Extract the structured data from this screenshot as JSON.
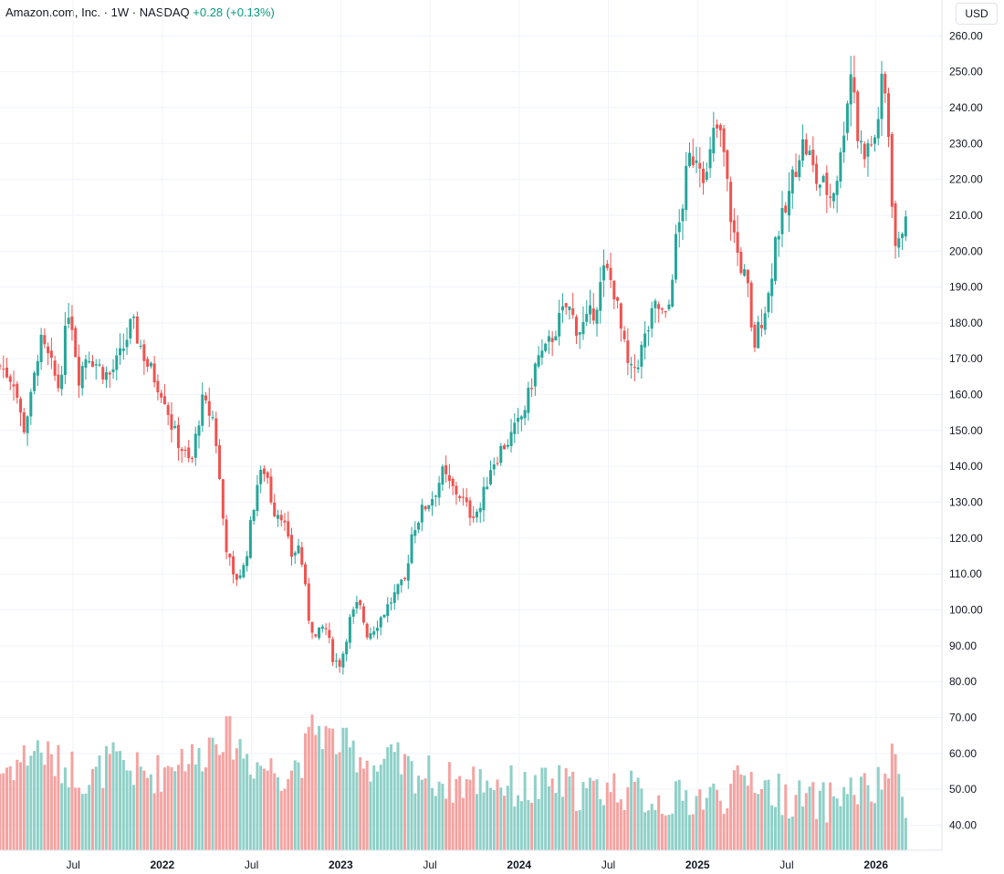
{
  "legend": {
    "symbol": "Amazon.com, Inc.",
    "interval": "1W",
    "exchange": "NASDAQ",
    "change": "+0.28 (+0.13%)",
    "sep": "·"
  },
  "currency": "USD",
  "colors": {
    "up": "#26a69a",
    "down": "#ef5350",
    "vol_up": "#8fd0c8",
    "vol_down": "#f4a3a1",
    "grid": "#f0f3fa",
    "axis_border": "#e0e3eb",
    "text": "#131722",
    "change": "#089981"
  },
  "chart_data": {
    "type": "candlestick",
    "interval": "1W",
    "price_axis": {
      "ylim": [
        33,
        270
      ],
      "ticks": [
        "40.00",
        "50.00",
        "60.00",
        "70.00",
        "80.00",
        "90.00",
        "100.00",
        "110.00",
        "120.00",
        "130.00",
        "140.00",
        "150.00",
        "160.00",
        "170.00",
        "180.00",
        "190.00",
        "200.00",
        "210.00",
        "220.00",
        "230.00",
        "240.00",
        "250.00",
        "260.00"
      ]
    },
    "time_axis": {
      "xlim": [
        2021.09,
        2026.37
      ],
      "ticks": [
        {
          "label": "Jul",
          "x": 2021.5,
          "major": false
        },
        {
          "label": "2022",
          "x": 2022.0,
          "major": true
        },
        {
          "label": "Jul",
          "x": 2022.5,
          "major": false
        },
        {
          "label": "2023",
          "x": 2023.0,
          "major": true
        },
        {
          "label": "Jul",
          "x": 2023.5,
          "major": false
        },
        {
          "label": "2024",
          "x": 2024.0,
          "major": true
        },
        {
          "label": "Jul",
          "x": 2024.5,
          "major": false
        },
        {
          "label": "2025",
          "x": 2025.0,
          "major": true
        },
        {
          "label": "Jul",
          "x": 2025.5,
          "major": false
        },
        {
          "label": "2026",
          "x": 2026.0,
          "major": true
        }
      ]
    },
    "grid": true,
    "close_path": [
      [
        2021.09,
        168
      ],
      [
        2021.17,
        164
      ],
      [
        2021.22,
        150
      ],
      [
        2021.27,
        160
      ],
      [
        2021.31,
        175
      ],
      [
        2021.36,
        170
      ],
      [
        2021.42,
        162
      ],
      [
        2021.48,
        186
      ],
      [
        2021.53,
        165
      ],
      [
        2021.58,
        172
      ],
      [
        2021.64,
        168
      ],
      [
        2021.7,
        165
      ],
      [
        2021.76,
        170
      ],
      [
        2021.83,
        180
      ],
      [
        2021.92,
        168
      ],
      [
        2022.01,
        160
      ],
      [
        2022.06,
        150
      ],
      [
        2022.11,
        145
      ],
      [
        2022.16,
        140
      ],
      [
        2022.22,
        158
      ],
      [
        2022.29,
        153
      ],
      [
        2022.35,
        120
      ],
      [
        2022.4,
        108
      ],
      [
        2022.46,
        112
      ],
      [
        2022.53,
        135
      ],
      [
        2022.58,
        140
      ],
      [
        2022.62,
        128
      ],
      [
        2022.67,
        127
      ],
      [
        2022.72,
        115
      ],
      [
        2022.77,
        118
      ],
      [
        2022.82,
        98
      ],
      [
        2022.86,
        92
      ],
      [
        2022.91,
        96
      ],
      [
        2022.96,
        86
      ],
      [
        2023.0,
        85
      ],
      [
        2023.05,
        97
      ],
      [
        2023.1,
        102
      ],
      [
        2023.15,
        93
      ],
      [
        2023.2,
        96
      ],
      [
        2023.25,
        100
      ],
      [
        2023.3,
        104
      ],
      [
        2023.36,
        108
      ],
      [
        2023.4,
        122
      ],
      [
        2023.46,
        128
      ],
      [
        2023.52,
        132
      ],
      [
        2023.57,
        138
      ],
      [
        2023.62,
        134
      ],
      [
        2023.67,
        132
      ],
      [
        2023.72,
        127
      ],
      [
        2023.78,
        128
      ],
      [
        2023.84,
        140
      ],
      [
        2023.9,
        145
      ],
      [
        2023.95,
        148
      ],
      [
        2024.0,
        152
      ],
      [
        2024.05,
        159
      ],
      [
        2024.1,
        170
      ],
      [
        2024.15,
        172
      ],
      [
        2024.2,
        178
      ],
      [
        2024.27,
        185
      ],
      [
        2024.33,
        178
      ],
      [
        2024.38,
        180
      ],
      [
        2024.43,
        185
      ],
      [
        2024.48,
        195
      ],
      [
        2024.53,
        190
      ],
      [
        2024.57,
        178
      ],
      [
        2024.62,
        165
      ],
      [
        2024.67,
        170
      ],
      [
        2024.72,
        178
      ],
      [
        2024.77,
        185
      ],
      [
        2024.83,
        180
      ],
      [
        2024.87,
        200
      ],
      [
        2024.9,
        208
      ],
      [
        2024.95,
        225
      ],
      [
        2025.0,
        228
      ],
      [
        2025.05,
        220
      ],
      [
        2025.1,
        235
      ],
      [
        2025.14,
        230
      ],
      [
        2025.18,
        212
      ],
      [
        2025.22,
        200
      ],
      [
        2025.28,
        190
      ],
      [
        2025.31,
        172
      ],
      [
        2025.35,
        180
      ],
      [
        2025.4,
        188
      ],
      [
        2025.44,
        205
      ],
      [
        2025.49,
        210
      ],
      [
        2025.54,
        222
      ],
      [
        2025.58,
        230
      ],
      [
        2025.62,
        228
      ],
      [
        2025.66,
        220
      ],
      [
        2025.71,
        218
      ],
      [
        2025.75,
        215
      ],
      [
        2025.8,
        225
      ],
      [
        2025.83,
        240
      ],
      [
        2025.86,
        250
      ],
      [
        2025.88,
        245
      ],
      [
        2025.9,
        230
      ],
      [
        2025.95,
        228
      ],
      [
        2026.0,
        232
      ],
      [
        2026.03,
        246
      ],
      [
        2026.06,
        242
      ],
      [
        2026.08,
        225
      ],
      [
        2026.1,
        205
      ],
      [
        2026.12,
        198
      ],
      [
        2026.14,
        205
      ],
      [
        2026.17,
        213
      ]
    ],
    "volume_path": [
      [
        2021.09,
        55
      ],
      [
        2021.2,
        58
      ],
      [
        2021.3,
        62
      ],
      [
        2021.4,
        57
      ],
      [
        2021.5,
        56
      ],
      [
        2021.6,
        52
      ],
      [
        2021.7,
        58
      ],
      [
        2021.8,
        56
      ],
      [
        2021.9,
        54
      ],
      [
        2022.0,
        55
      ],
      [
        2022.1,
        60
      ],
      [
        2022.2,
        58
      ],
      [
        2022.3,
        66
      ],
      [
        2022.4,
        64
      ],
      [
        2022.5,
        58
      ],
      [
        2022.6,
        56
      ],
      [
        2022.7,
        55
      ],
      [
        2022.8,
        60
      ],
      [
        2022.85,
        68
      ],
      [
        2022.9,
        66
      ],
      [
        2023.0,
        62
      ],
      [
        2023.1,
        60
      ],
      [
        2023.2,
        56
      ],
      [
        2023.3,
        58
      ],
      [
        2023.4,
        55
      ],
      [
        2023.5,
        54
      ],
      [
        2023.6,
        52
      ],
      [
        2023.7,
        52
      ],
      [
        2023.8,
        53
      ],
      [
        2023.9,
        52
      ],
      [
        2024.0,
        50
      ],
      [
        2024.1,
        50
      ],
      [
        2024.2,
        52
      ],
      [
        2024.3,
        50
      ],
      [
        2024.4,
        49
      ],
      [
        2024.5,
        51
      ],
      [
        2024.6,
        50
      ],
      [
        2024.7,
        48
      ],
      [
        2024.8,
        47
      ],
      [
        2024.9,
        47
      ],
      [
        2025.0,
        48
      ],
      [
        2025.1,
        48
      ],
      [
        2025.2,
        50
      ],
      [
        2025.3,
        54
      ],
      [
        2025.4,
        50
      ],
      [
        2025.5,
        48
      ],
      [
        2025.6,
        47
      ],
      [
        2025.7,
        46
      ],
      [
        2025.8,
        49
      ],
      [
        2025.9,
        50
      ],
      [
        2026.0,
        49
      ],
      [
        2026.05,
        54
      ],
      [
        2026.1,
        58
      ],
      [
        2026.17,
        46
      ]
    ],
    "volume_axis_note": "volume drawn on the price scale"
  }
}
